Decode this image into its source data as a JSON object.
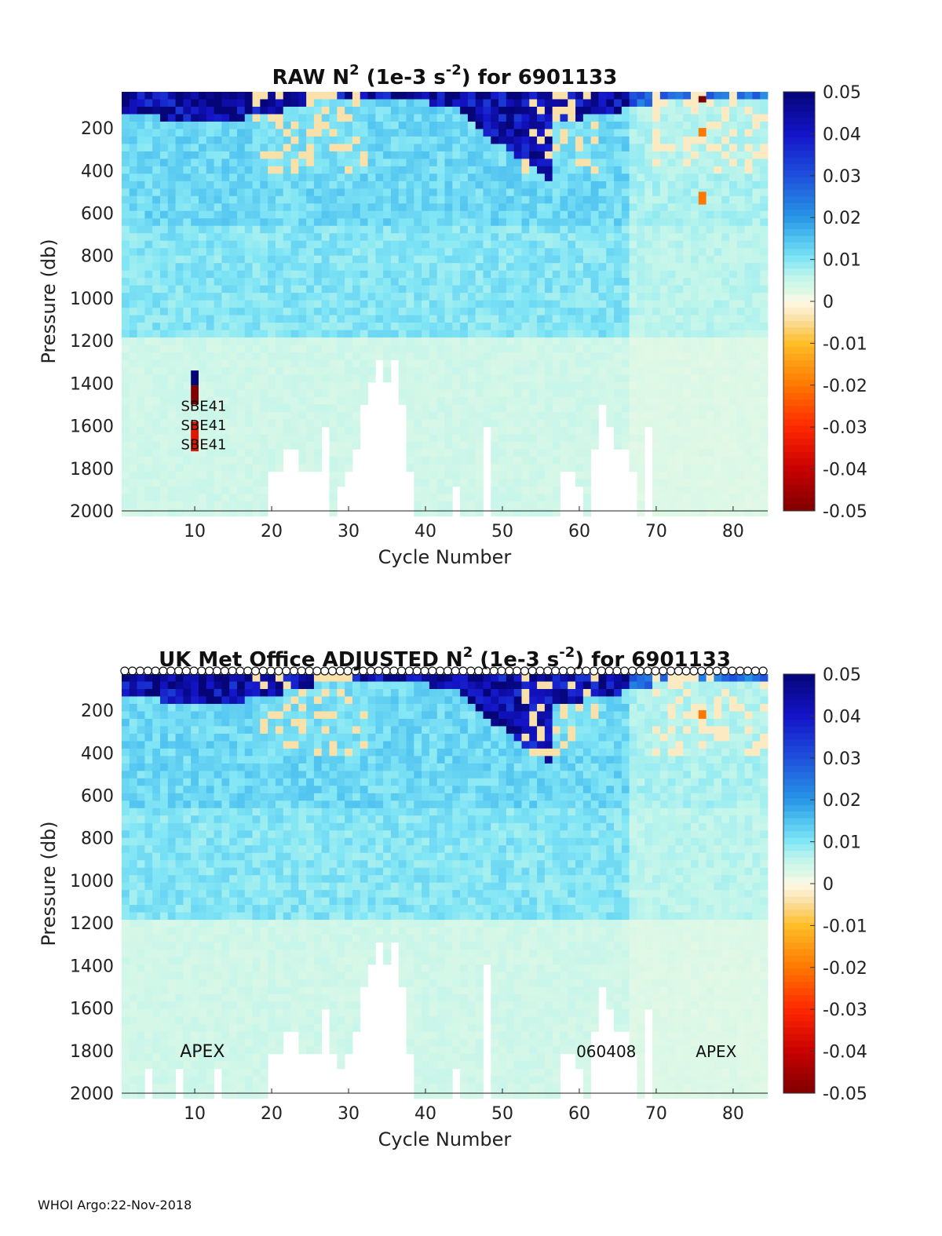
{
  "chart_data": [
    {
      "type": "heatmap",
      "title": {
        "pre": "RAW N",
        "sup1": "2",
        "mid": " (1e-3 s",
        "sup2": "-2",
        "post": ") for 6901133"
      },
      "xlabel": "Cycle Number",
      "ylabel": "Pressure (db)",
      "xlim": [
        1,
        84
      ],
      "ylim": [
        2000,
        30
      ],
      "y_reversed": true,
      "xticks": [
        10,
        20,
        30,
        40,
        50,
        60,
        70,
        80
      ],
      "yticks": [
        200,
        400,
        600,
        800,
        1000,
        1200,
        1400,
        1600,
        1800,
        2000
      ],
      "colorbar": {
        "min": -0.05,
        "max": 0.05,
        "ticks": [
          "0.05",
          "0.04",
          "0.03",
          "0.02",
          "0.01",
          "0",
          "-0.01",
          "-0.02",
          "-0.03",
          "-0.04",
          "-0.05"
        ],
        "colormap": "jet-like with white/cream center"
      },
      "annotations": [
        {
          "text": "SBE41",
          "x": 8.2,
          "y": 1530
        },
        {
          "text": "SBE41",
          "x": 8.2,
          "y": 1620
        },
        {
          "text": "SBE41",
          "x": 8.2,
          "y": 1710
        }
      ],
      "highlights": [
        {
          "x": 10,
          "y_range": [
            1340,
            1410
          ],
          "value": 0.05
        },
        {
          "x": 10,
          "y_range": [
            1410,
            1500
          ],
          "value": -0.05
        },
        {
          "x": 10,
          "y_range": [
            1580,
            1720
          ],
          "value": -0.035
        },
        {
          "x": 76,
          "y_range": [
            50,
            80
          ],
          "value": -0.05
        },
        {
          "x": 76,
          "y_range": [
            200,
            240
          ],
          "value": -0.02
        },
        {
          "x": 76,
          "y_range": [
            500,
            560
          ],
          "value": -0.02
        }
      ],
      "missing_depth_by_cycle": [
        [
          20,
          1800
        ],
        [
          21,
          1800
        ],
        [
          22,
          1700
        ],
        [
          23,
          1700
        ],
        [
          24,
          1800
        ],
        [
          25,
          1800
        ],
        [
          26,
          1800
        ],
        [
          27,
          1600
        ],
        [
          29,
          1900
        ],
        [
          30,
          1800
        ],
        [
          31,
          1700
        ],
        [
          32,
          1500
        ],
        [
          33,
          1400
        ],
        [
          34,
          1300
        ],
        [
          35,
          1400
        ],
        [
          36,
          1300
        ],
        [
          37,
          1500
        ],
        [
          38,
          1800
        ],
        [
          44,
          1900
        ],
        [
          48,
          1600
        ],
        [
          58,
          1800
        ],
        [
          59,
          1800
        ],
        [
          60,
          1900
        ],
        [
          62,
          1700
        ],
        [
          63,
          1500
        ],
        [
          64,
          1600
        ],
        [
          65,
          1700
        ],
        [
          66,
          1700
        ],
        [
          67,
          1800
        ],
        [
          69,
          1600
        ]
      ],
      "representative_values": {
        "surface_0_150db": 0.045,
        "thermocline_150_600db": 0.012,
        "mid_600_1200db": 0.01,
        "deep_1200_2000db": 0.004,
        "cream_patches": -0.004
      },
      "side_labels": {
        "top_circles": false,
        "bottom_left": "",
        "bottom_mid": "",
        "bottom_right": ""
      }
    },
    {
      "type": "heatmap",
      "title": {
        "pre": "UK Met Office  ADJUSTED N",
        "sup1": "2",
        "mid": " (1e-3 s",
        "sup2": "-2",
        "post": ") for 6901133"
      },
      "xlabel": "Cycle Number",
      "ylabel": "Pressure (db)",
      "xlim": [
        1,
        84
      ],
      "ylim": [
        2000,
        30
      ],
      "y_reversed": true,
      "xticks": [
        10,
        20,
        30,
        40,
        50,
        60,
        70,
        80
      ],
      "yticks": [
        200,
        400,
        600,
        800,
        1000,
        1200,
        1400,
        1600,
        1800,
        2000
      ],
      "colorbar": {
        "min": -0.05,
        "max": 0.05,
        "ticks": [
          "0.05",
          "0.04",
          "0.03",
          "0.02",
          "0.01",
          "0",
          "-0.01",
          "-0.02",
          "-0.03",
          "-0.04",
          "-0.05"
        ],
        "colormap": "jet-like with white/cream center"
      },
      "annotations": [],
      "highlights": [
        {
          "x": 76,
          "y_range": [
            200,
            240
          ],
          "value": -0.02
        }
      ],
      "missing_depth_by_cycle": [
        [
          4,
          1900
        ],
        [
          8,
          1900
        ],
        [
          13,
          1900
        ],
        [
          20,
          1800
        ],
        [
          21,
          1800
        ],
        [
          22,
          1700
        ],
        [
          23,
          1700
        ],
        [
          24,
          1800
        ],
        [
          25,
          1800
        ],
        [
          26,
          1800
        ],
        [
          27,
          1600
        ],
        [
          28,
          1800
        ],
        [
          29,
          1900
        ],
        [
          30,
          1800
        ],
        [
          31,
          1700
        ],
        [
          32,
          1500
        ],
        [
          33,
          1400
        ],
        [
          34,
          1300
        ],
        [
          35,
          1400
        ],
        [
          36,
          1300
        ],
        [
          37,
          1500
        ],
        [
          38,
          1800
        ],
        [
          44,
          1900
        ],
        [
          48,
          1400
        ],
        [
          58,
          1800
        ],
        [
          59,
          1800
        ],
        [
          60,
          1900
        ],
        [
          62,
          1700
        ],
        [
          63,
          1500
        ],
        [
          64,
          1600
        ],
        [
          65,
          1700
        ],
        [
          66,
          1700
        ],
        [
          67,
          1800
        ],
        [
          69,
          1600
        ]
      ],
      "representative_values": {
        "surface_0_150db": 0.045,
        "thermocline_150_600db": 0.012,
        "mid_600_1200db": 0.01,
        "deep_1200_2000db": 0.004,
        "cream_patches": -0.004
      },
      "side_labels": {
        "top_circles": true,
        "bottom_left": "APEX",
        "bottom_mid": "060408",
        "bottom_right": "APEX"
      }
    }
  ],
  "footer": {
    "text": "WHOI Argo:22-Nov-2018"
  }
}
